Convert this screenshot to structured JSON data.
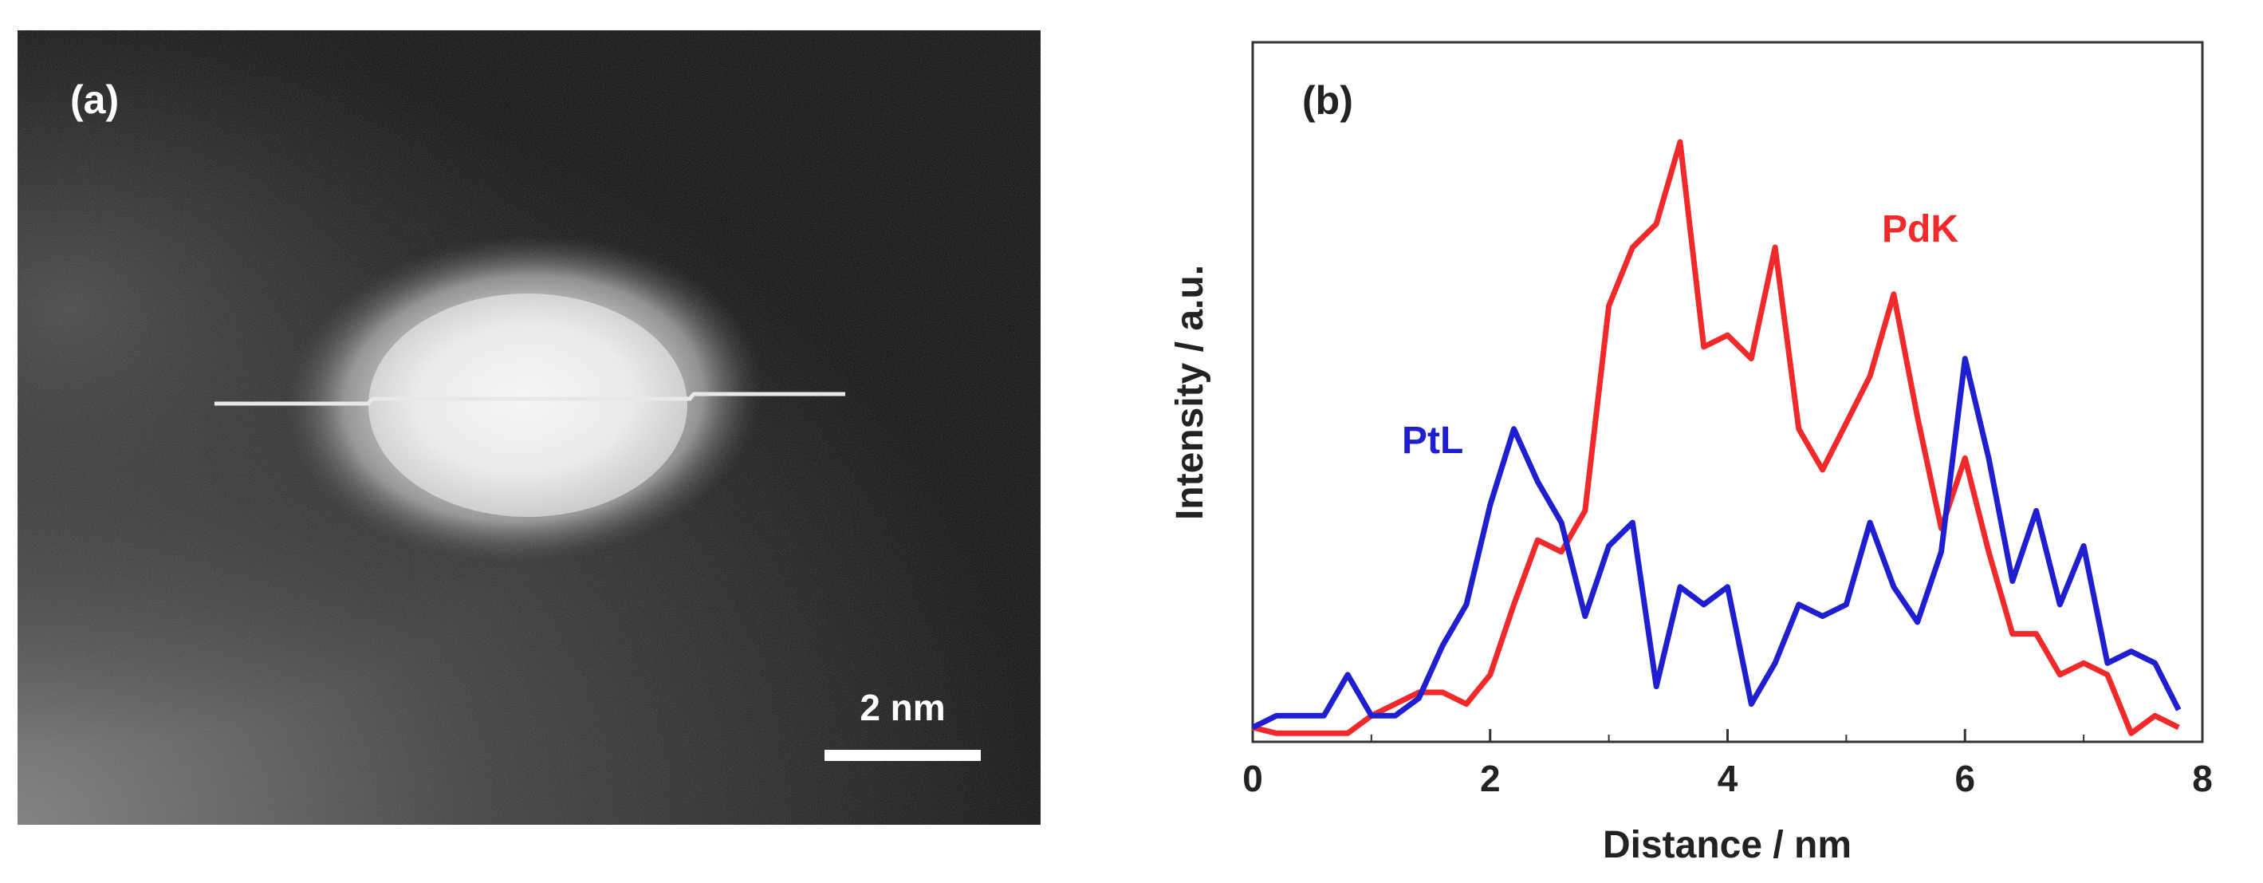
{
  "panel_a": {
    "label": "(a)",
    "scale_bar_text": "2 nm"
  },
  "chart_data": {
    "type": "line",
    "panel_label": "(b)",
    "xlabel": "Distance / nm",
    "ylabel": "Intensity / a.u.",
    "xlim": [
      0,
      8
    ],
    "ylim": [
      0,
      1
    ],
    "xticks": [
      0,
      2,
      4,
      6,
      8
    ],
    "yticks": [],
    "grid": false,
    "series": [
      {
        "name": "PdK",
        "color": "#f02a2a",
        "x": [
          0,
          0.2,
          0.4,
          0.6,
          0.8,
          1.0,
          1.2,
          1.4,
          1.6,
          1.8,
          2.0,
          2.2,
          2.4,
          2.6,
          2.8,
          3.0,
          3.2,
          3.4,
          3.6,
          3.8,
          4.0,
          4.2,
          4.4,
          4.6,
          4.8,
          5.0,
          5.2,
          5.4,
          5.6,
          5.8,
          6.0,
          6.2,
          6.4,
          6.6,
          6.8,
          7.0,
          7.2,
          7.4,
          7.6,
          7.8
        ],
        "values": [
          0.0,
          -0.01,
          -0.01,
          -0.01,
          -0.01,
          0.02,
          0.04,
          0.06,
          0.06,
          0.04,
          0.09,
          0.21,
          0.32,
          0.3,
          0.37,
          0.72,
          0.82,
          0.86,
          1.0,
          0.65,
          0.67,
          0.63,
          0.82,
          0.51,
          0.44,
          0.52,
          0.6,
          0.74,
          0.53,
          0.34,
          0.46,
          0.3,
          0.16,
          0.16,
          0.09,
          0.11,
          0.09,
          -0.01,
          0.02,
          0.0
        ]
      },
      {
        "name": "PtL",
        "color": "#1f1fcf",
        "x": [
          0,
          0.2,
          0.4,
          0.6,
          0.8,
          1.0,
          1.2,
          1.4,
          1.6,
          1.8,
          2.0,
          2.2,
          2.4,
          2.6,
          2.8,
          3.0,
          3.2,
          3.4,
          3.6,
          3.8,
          4.0,
          4.2,
          4.4,
          4.6,
          4.8,
          5.0,
          5.2,
          5.4,
          5.6,
          5.8,
          6.0,
          6.2,
          6.4,
          6.6,
          6.8,
          7.0,
          7.2,
          7.4,
          7.6,
          7.8
        ],
        "values": [
          0.0,
          0.02,
          0.02,
          0.02,
          0.09,
          0.02,
          0.02,
          0.05,
          0.14,
          0.21,
          0.38,
          0.51,
          0.42,
          0.35,
          0.19,
          0.31,
          0.35,
          0.07,
          0.24,
          0.21,
          0.24,
          0.04,
          0.11,
          0.21,
          0.19,
          0.21,
          0.35,
          0.24,
          0.18,
          0.3,
          0.63,
          0.46,
          0.25,
          0.37,
          0.21,
          0.31,
          0.11,
          0.13,
          0.11,
          0.03
        ]
      }
    ],
    "annotations": [
      {
        "text": "PdK",
        "series": "PdK"
      },
      {
        "text": "PtL",
        "series": "PtL"
      }
    ]
  }
}
